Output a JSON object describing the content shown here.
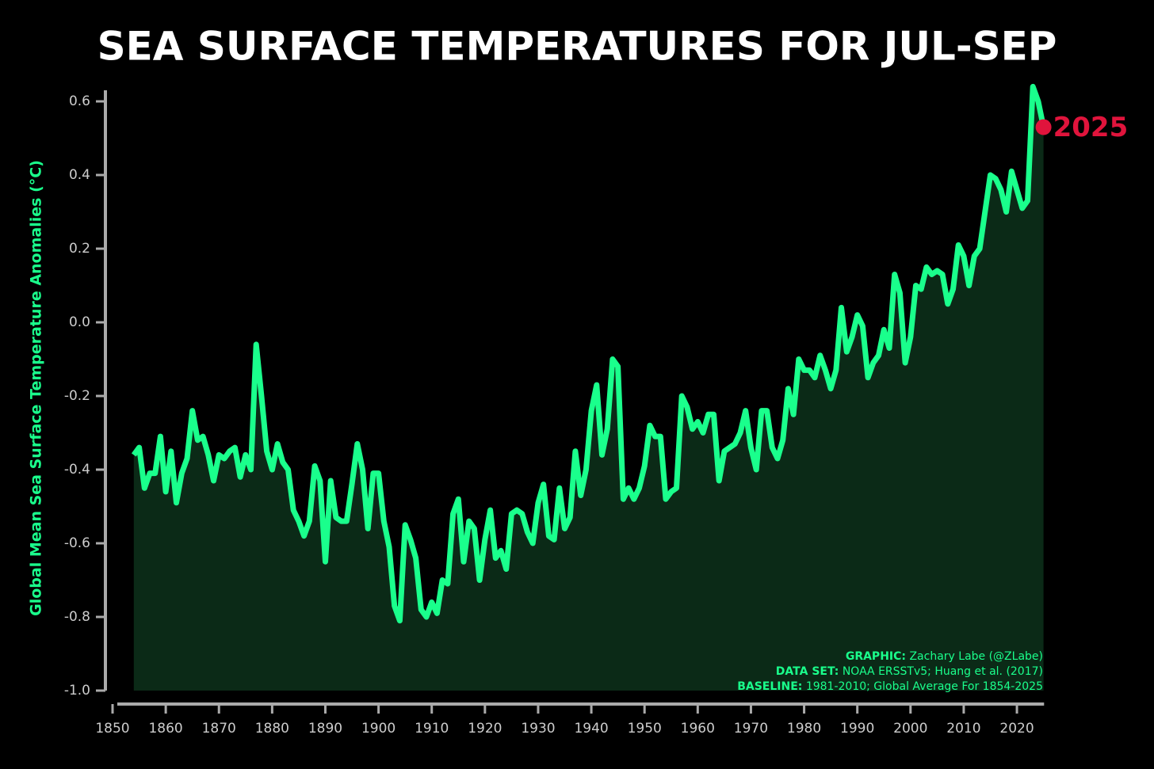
{
  "chart_data": {
    "type": "area-line",
    "title": "SEA SURFACE TEMPERATURES FOR JUL-SEP",
    "y_label": "Global Mean Sea Surface Temperature Anomalies (°C)",
    "x": [
      1854,
      1855,
      1856,
      1857,
      1858,
      1859,
      1860,
      1861,
      1862,
      1863,
      1864,
      1865,
      1866,
      1867,
      1868,
      1869,
      1870,
      1871,
      1872,
      1873,
      1874,
      1875,
      1876,
      1877,
      1878,
      1879,
      1880,
      1881,
      1882,
      1883,
      1884,
      1885,
      1886,
      1887,
      1888,
      1889,
      1890,
      1891,
      1892,
      1893,
      1894,
      1895,
      1896,
      1897,
      1898,
      1899,
      1900,
      1901,
      1902,
      1903,
      1904,
      1905,
      1906,
      1907,
      1908,
      1909,
      1910,
      1911,
      1912,
      1913,
      1914,
      1915,
      1916,
      1917,
      1918,
      1919,
      1920,
      1921,
      1922,
      1923,
      1924,
      1925,
      1926,
      1927,
      1928,
      1929,
      1930,
      1931,
      1932,
      1933,
      1934,
      1935,
      1936,
      1937,
      1938,
      1939,
      1940,
      1941,
      1942,
      1943,
      1944,
      1945,
      1946,
      1947,
      1948,
      1949,
      1950,
      1951,
      1952,
      1953,
      1954,
      1955,
      1956,
      1957,
      1958,
      1959,
      1960,
      1961,
      1962,
      1963,
      1964,
      1965,
      1966,
      1967,
      1968,
      1969,
      1970,
      1971,
      1972,
      1973,
      1974,
      1975,
      1976,
      1977,
      1978,
      1979,
      1980,
      1981,
      1982,
      1983,
      1984,
      1985,
      1986,
      1987,
      1988,
      1989,
      1990,
      1991,
      1992,
      1993,
      1994,
      1995,
      1996,
      1997,
      1998,
      1999,
      2000,
      2001,
      2002,
      2003,
      2004,
      2005,
      2006,
      2007,
      2008,
      2009,
      2010,
      2011,
      2012,
      2013,
      2014,
      2015,
      2016,
      2017,
      2018,
      2019,
      2020,
      2021,
      2022,
      2023,
      2024,
      2025
    ],
    "values": [
      -0.36,
      -0.34,
      -0.45,
      -0.41,
      -0.41,
      -0.31,
      -0.46,
      -0.35,
      -0.49,
      -0.41,
      -0.37,
      -0.24,
      -0.32,
      -0.31,
      -0.36,
      -0.43,
      -0.36,
      -0.37,
      -0.35,
      -0.34,
      -0.42,
      -0.36,
      -0.4,
      -0.06,
      -0.2,
      -0.35,
      -0.4,
      -0.33,
      -0.38,
      -0.4,
      -0.51,
      -0.54,
      -0.58,
      -0.54,
      -0.39,
      -0.43,
      -0.65,
      -0.43,
      -0.53,
      -0.54,
      -0.54,
      -0.44,
      -0.33,
      -0.4,
      -0.56,
      -0.41,
      -0.41,
      -0.54,
      -0.61,
      -0.77,
      -0.81,
      -0.55,
      -0.59,
      -0.64,
      -0.78,
      -0.8,
      -0.76,
      -0.79,
      -0.7,
      -0.71,
      -0.52,
      -0.48,
      -0.65,
      -0.54,
      -0.56,
      -0.7,
      -0.59,
      -0.51,
      -0.64,
      -0.62,
      -0.67,
      -0.52,
      -0.51,
      -0.52,
      -0.57,
      -0.6,
      -0.49,
      -0.44,
      -0.58,
      -0.59,
      -0.45,
      -0.56,
      -0.53,
      -0.35,
      -0.47,
      -0.4,
      -0.24,
      -0.17,
      -0.36,
      -0.29,
      -0.1,
      -0.12,
      -0.48,
      -0.45,
      -0.48,
      -0.45,
      -0.39,
      -0.28,
      -0.31,
      -0.31,
      -0.48,
      -0.46,
      -0.45,
      -0.2,
      -0.23,
      -0.29,
      -0.27,
      -0.3,
      -0.25,
      -0.25,
      -0.43,
      -0.35,
      -0.34,
      -0.33,
      -0.3,
      -0.24,
      -0.34,
      -0.4,
      -0.24,
      -0.24,
      -0.34,
      -0.37,
      -0.32,
      -0.18,
      -0.25,
      -0.1,
      -0.13,
      -0.13,
      -0.15,
      -0.09,
      -0.13,
      -0.18,
      -0.13,
      0.04,
      -0.08,
      -0.04,
      0.02,
      -0.01,
      -0.15,
      -0.11,
      -0.09,
      -0.02,
      -0.07,
      0.13,
      0.08,
      -0.11,
      -0.04,
      0.1,
      0.09,
      0.15,
      0.13,
      0.14,
      0.13,
      0.05,
      0.09,
      0.21,
      0.18,
      0.1,
      0.18,
      0.2,
      0.3,
      0.4,
      0.39,
      0.36,
      0.3,
      0.41,
      0.36,
      0.31,
      0.33,
      0.64,
      0.6,
      0.53
    ],
    "color": "#1aff8c",
    "fill_color": "#0b2a17",
    "highlight_color": "#e0143c",
    "xlim": [
      1850,
      2026
    ],
    "ylim": [
      -1.0,
      0.63
    ],
    "xticks": [
      1850,
      1860,
      1870,
      1880,
      1890,
      1900,
      1910,
      1920,
      1930,
      1940,
      1950,
      1960,
      1970,
      1980,
      1990,
      2000,
      2010,
      2020
    ],
    "yticks": [
      0.6,
      0.4,
      0.2,
      {
        "value": 0,
        "label": "0.0"
      },
      -0.2,
      -0.4,
      -0.6,
      -0.8,
      {
        "value": -1,
        "label": "-1.0"
      }
    ],
    "credits": [
      {
        "label": "GRAPHIC:",
        "text": "Zachary Labe (@ZLabe)"
      },
      {
        "label": "DATA SET:",
        "text": "NOAA ERSSTv5; Huang et al. (2017)"
      },
      {
        "label": "BASELINE:",
        "text": "1981-2010; Global Average For 1854-2025"
      }
    ]
  }
}
